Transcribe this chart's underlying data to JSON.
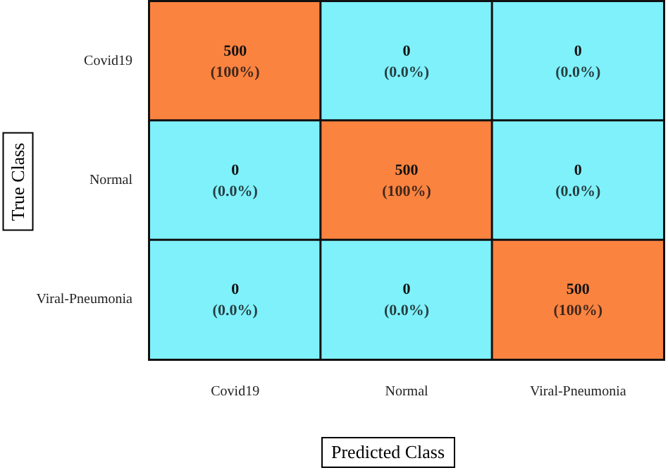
{
  "chart_data": {
    "type": "heatmap",
    "xlabel": "Predicted Class",
    "ylabel": "True Class",
    "categories": [
      "Covid19",
      "Normal",
      "Viral-Pneumonia"
    ],
    "y_categories": [
      "Covid19",
      "Normal",
      "Viral-Pneumonia"
    ],
    "cells": [
      [
        500,
        0,
        0
      ],
      [
        0,
        500,
        0
      ],
      [
        0,
        0,
        500
      ]
    ],
    "data_labels": true,
    "annotations": [
      "(100%)",
      "(0.0%)",
      "(0.0%)",
      "(0.0%)",
      "(100%)",
      "(0.0%)",
      "(0.0%)",
      "(0.0%)",
      "(100%)"
    ],
    "colors": [
      "#7ff1fb",
      "#fb8340"
    ]
  }
}
